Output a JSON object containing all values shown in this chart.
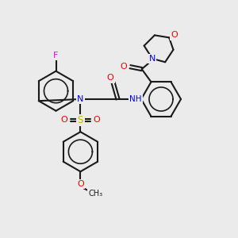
{
  "bg_color": "#ebebeb",
  "bond_color": "#1a1a1a",
  "atom_colors": {
    "F": "#ee00ee",
    "N": "#0000ee",
    "O": "#ee0000",
    "S": "#bbbb00",
    "H": "#4a8a8a"
  },
  "figsize": [
    3.0,
    3.0
  ],
  "dpi": 100,
  "lw": 1.5
}
